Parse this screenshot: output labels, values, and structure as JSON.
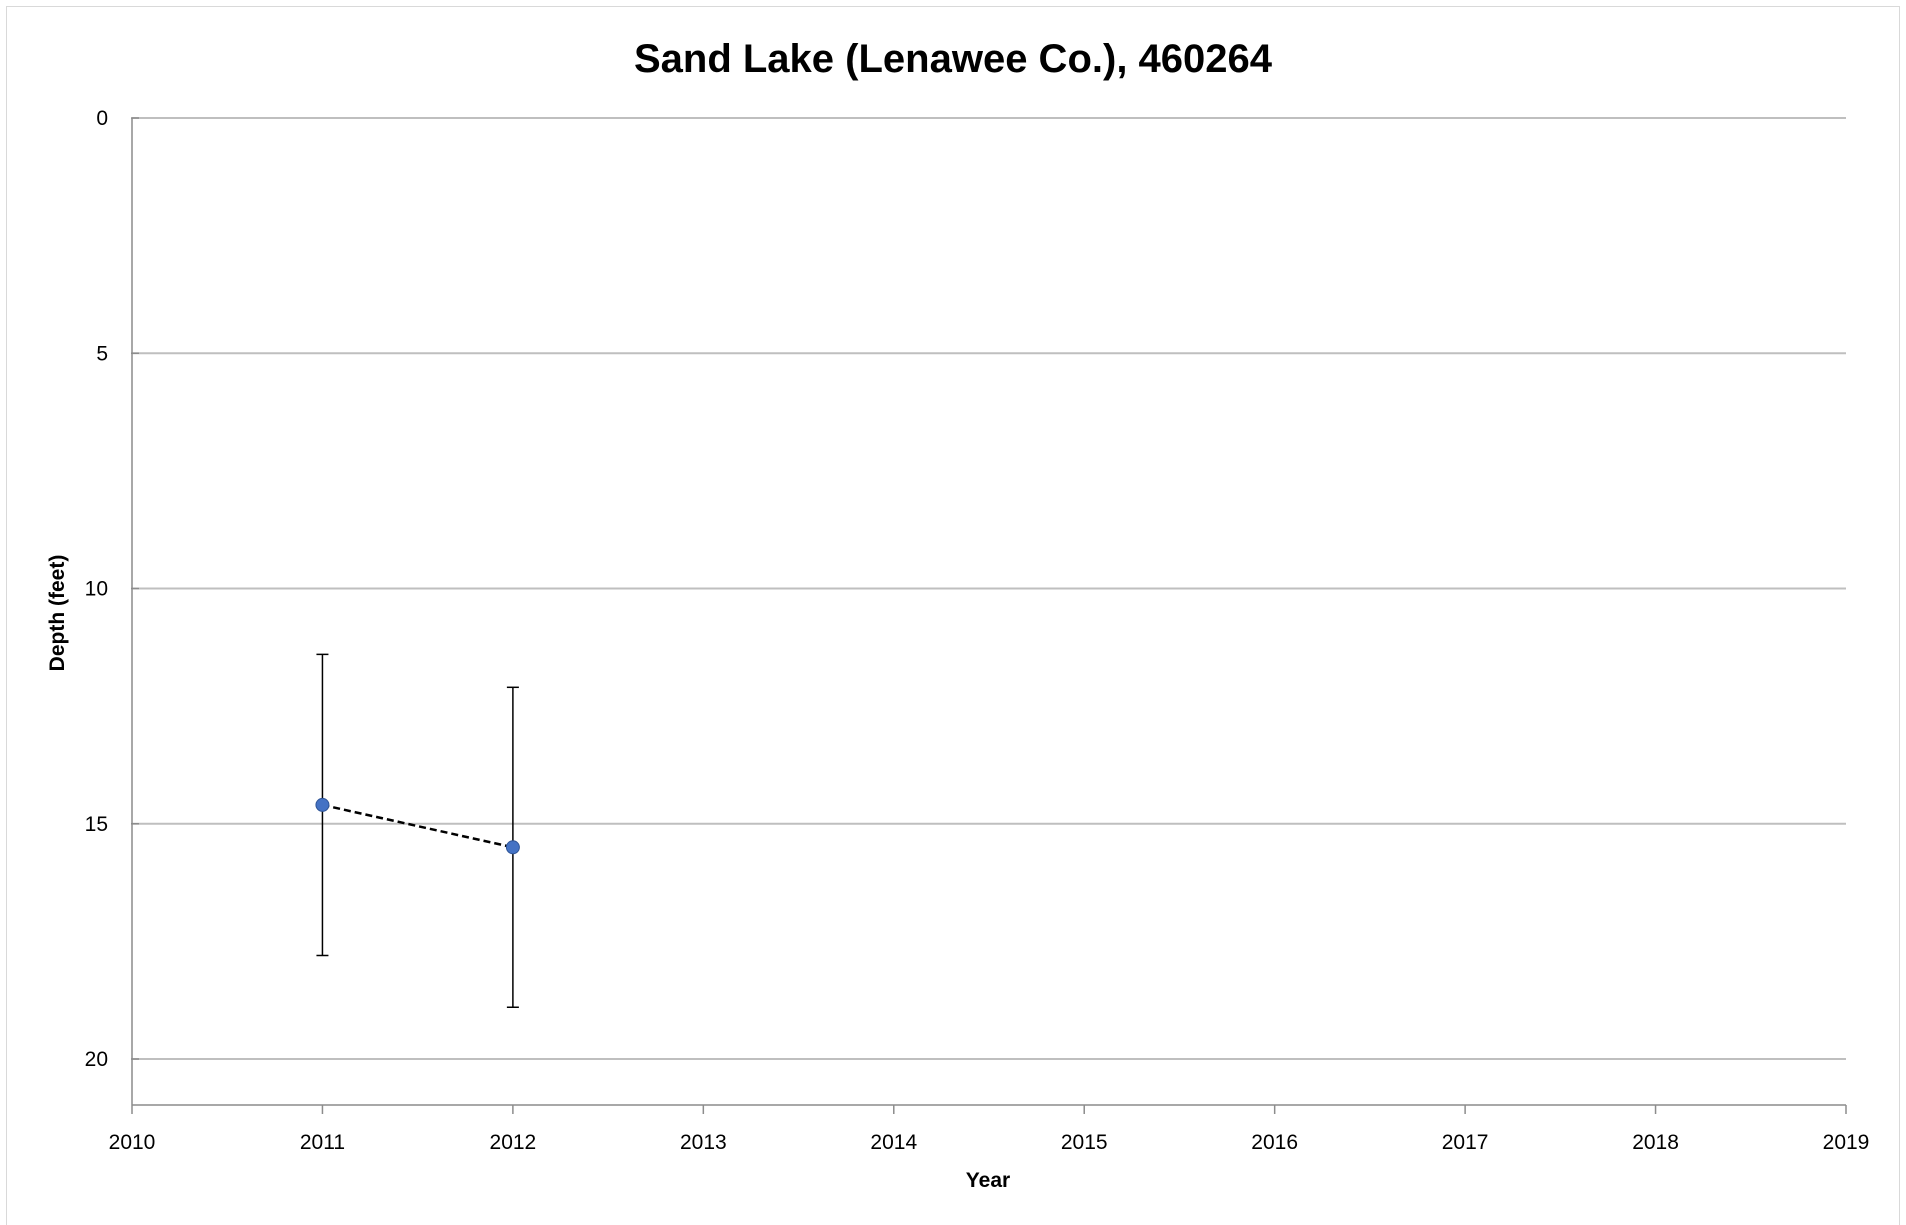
{
  "chart_data": {
    "type": "scatter",
    "title": "Sand Lake (Lenawee Co.), 460264",
    "xlabel": "Year",
    "ylabel": "Depth (feet)",
    "xlim": [
      2010,
      2019
    ],
    "ylim": [
      0,
      21
    ],
    "y_inverted": true,
    "x_ticks": [
      2010,
      2011,
      2012,
      2013,
      2014,
      2015,
      2016,
      2017,
      2018,
      2019
    ],
    "y_ticks": [
      0,
      5,
      10,
      15,
      20
    ],
    "grid": "horizontal",
    "series": [
      {
        "x": [
          2011,
          2012
        ],
        "y": [
          14.6,
          15.5
        ],
        "error_low": [
          11.4,
          12.1
        ],
        "error_high": [
          17.8,
          18.9
        ],
        "line_style": "dashed",
        "marker_color": "#4472c4"
      }
    ]
  }
}
